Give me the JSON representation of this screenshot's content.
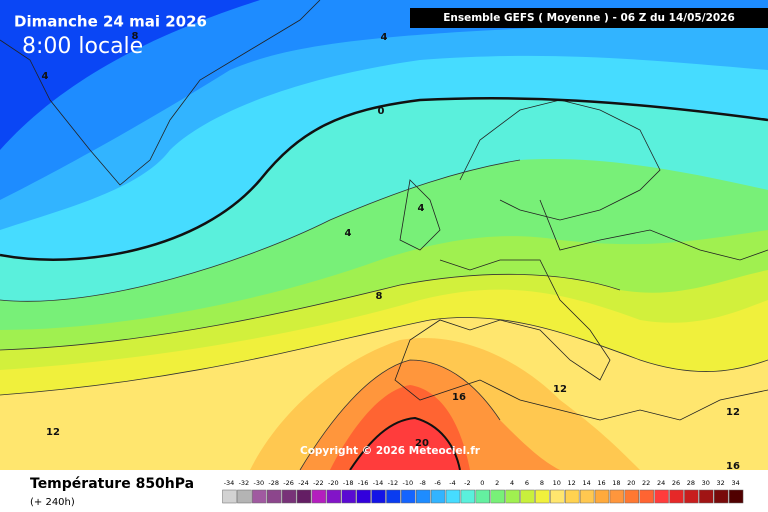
{
  "header": {
    "title": "Dimanche 24 mai 2026",
    "time": "8:00 locale",
    "model_run": "Ensemble GEFS  ( Moyenne )  -  06 Z du 14/05/2026"
  },
  "copyright": "Copyright © 2026 Meteociel.fr",
  "footer": {
    "legend_title": "Température 850hPa",
    "lead_time": "(+ 240h)"
  },
  "colorbar": {
    "values": [
      -34,
      -32,
      -30,
      -28,
      -26,
      -24,
      -22,
      -20,
      -18,
      -16,
      -14,
      -12,
      -10,
      -8,
      -6,
      -4,
      -2,
      0,
      2,
      4,
      6,
      8,
      10,
      12,
      14,
      16,
      18,
      20,
      22,
      24,
      26,
      28,
      30,
      32,
      34
    ],
    "colors": [
      "#d2d2d2",
      "#b4b4b4",
      "#a05aa0",
      "#8c468c",
      "#783278",
      "#641e64",
      "#b41ebe",
      "#8214c8",
      "#5a0ad2",
      "#3200dc",
      "#1414e6",
      "#0a3cf0",
      "#1464ff",
      "#1e8cff",
      "#32b4ff",
      "#46dcff",
      "#5af0dc",
      "#64f0a0",
      "#78f078",
      "#a0f050",
      "#c8f03c",
      "#f0f03c",
      "#ffe66e",
      "#ffd250",
      "#ffc850",
      "#ffaa3c",
      "#ff963c",
      "#ff7832",
      "#ff6432",
      "#ff3c3c",
      "#e62828",
      "#c81e1e",
      "#a01414",
      "#780a0a",
      "#500000"
    ]
  },
  "contour_labels": [
    "8",
    "4",
    "4",
    "0",
    "4",
    "4",
    "8",
    "12",
    "12",
    "16",
    "20",
    "12",
    "16"
  ]
}
